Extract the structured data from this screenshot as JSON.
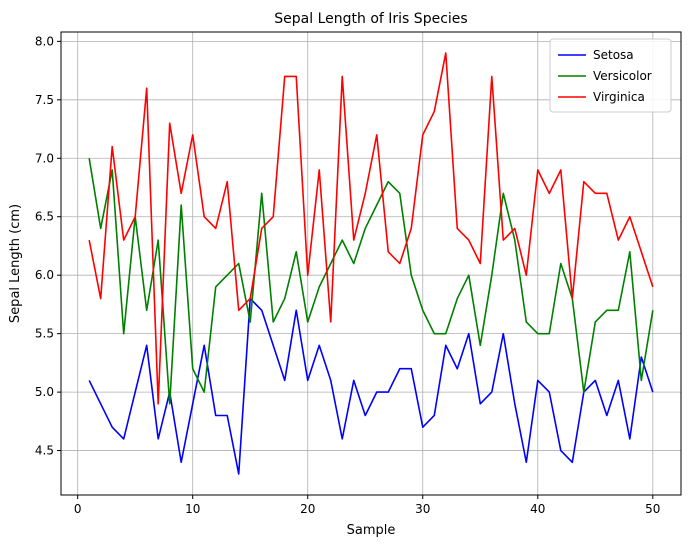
{
  "chart_data": {
    "type": "line",
    "title": "Sepal Length of Iris Species",
    "xlabel": "Sample",
    "ylabel": "Sepal Length (cm)",
    "xlim": [
      -1.45,
      52.45
    ],
    "ylim": [
      4.12,
      8.08
    ],
    "x_ticks": [
      0,
      10,
      20,
      30,
      40,
      50
    ],
    "y_ticks": [
      4.5,
      5.0,
      5.5,
      6.0,
      6.5,
      7.0,
      7.5,
      8.0
    ],
    "x_tick_labels": [
      "0",
      "10",
      "20",
      "30",
      "40",
      "50"
    ],
    "y_tick_labels": [
      "4.5",
      "5.0",
      "5.5",
      "6.0",
      "6.5",
      "7.0",
      "7.5",
      "8.0"
    ],
    "grid": true,
    "legend_position": "top-right",
    "x": [
      1,
      2,
      3,
      4,
      5,
      6,
      7,
      8,
      9,
      10,
      11,
      12,
      13,
      14,
      15,
      16,
      17,
      18,
      19,
      20,
      21,
      22,
      23,
      24,
      25,
      26,
      27,
      28,
      29,
      30,
      31,
      32,
      33,
      34,
      35,
      36,
      37,
      38,
      39,
      40,
      41,
      42,
      43,
      44,
      45,
      46,
      47,
      48,
      49,
      50
    ],
    "series": [
      {
        "name": "Setosa",
        "color": "#0000ff",
        "values": [
          5.1,
          4.9,
          4.7,
          4.6,
          5.0,
          5.4,
          4.6,
          5.0,
          4.4,
          4.9,
          5.4,
          4.8,
          4.8,
          4.3,
          5.8,
          5.7,
          5.4,
          5.1,
          5.7,
          5.1,
          5.4,
          5.1,
          4.6,
          5.1,
          4.8,
          5.0,
          5.0,
          5.2,
          5.2,
          4.7,
          4.8,
          5.4,
          5.2,
          5.5,
          4.9,
          5.0,
          5.5,
          4.9,
          4.4,
          5.1,
          5.0,
          4.5,
          4.4,
          5.0,
          5.1,
          4.8,
          5.1,
          4.6,
          5.3,
          5.0
        ]
      },
      {
        "name": "Versicolor",
        "color": "#008000",
        "values": [
          7.0,
          6.4,
          6.9,
          5.5,
          6.5,
          5.7,
          6.3,
          4.9,
          6.6,
          5.2,
          5.0,
          5.9,
          6.0,
          6.1,
          5.6,
          6.7,
          5.6,
          5.8,
          6.2,
          5.6,
          5.9,
          6.1,
          6.3,
          6.1,
          6.4,
          6.6,
          6.8,
          6.7,
          6.0,
          5.7,
          5.5,
          5.5,
          5.8,
          6.0,
          5.4,
          6.0,
          6.7,
          6.3,
          5.6,
          5.5,
          5.5,
          6.1,
          5.8,
          5.0,
          5.6,
          5.7,
          5.7,
          6.2,
          5.1,
          5.7
        ]
      },
      {
        "name": "Virginica",
        "color": "#ff0000",
        "values": [
          6.3,
          5.8,
          7.1,
          6.3,
          6.5,
          7.6,
          4.9,
          7.3,
          6.7,
          7.2,
          6.5,
          6.4,
          6.8,
          5.7,
          5.8,
          6.4,
          6.5,
          7.7,
          7.7,
          6.0,
          6.9,
          5.6,
          7.7,
          6.3,
          6.7,
          7.2,
          6.2,
          6.1,
          6.4,
          7.2,
          7.4,
          7.9,
          6.4,
          6.3,
          6.1,
          7.7,
          6.3,
          6.4,
          6.0,
          6.9,
          6.7,
          6.9,
          5.8,
          6.8,
          6.7,
          6.7,
          6.3,
          6.5,
          6.2,
          5.9
        ]
      }
    ]
  }
}
